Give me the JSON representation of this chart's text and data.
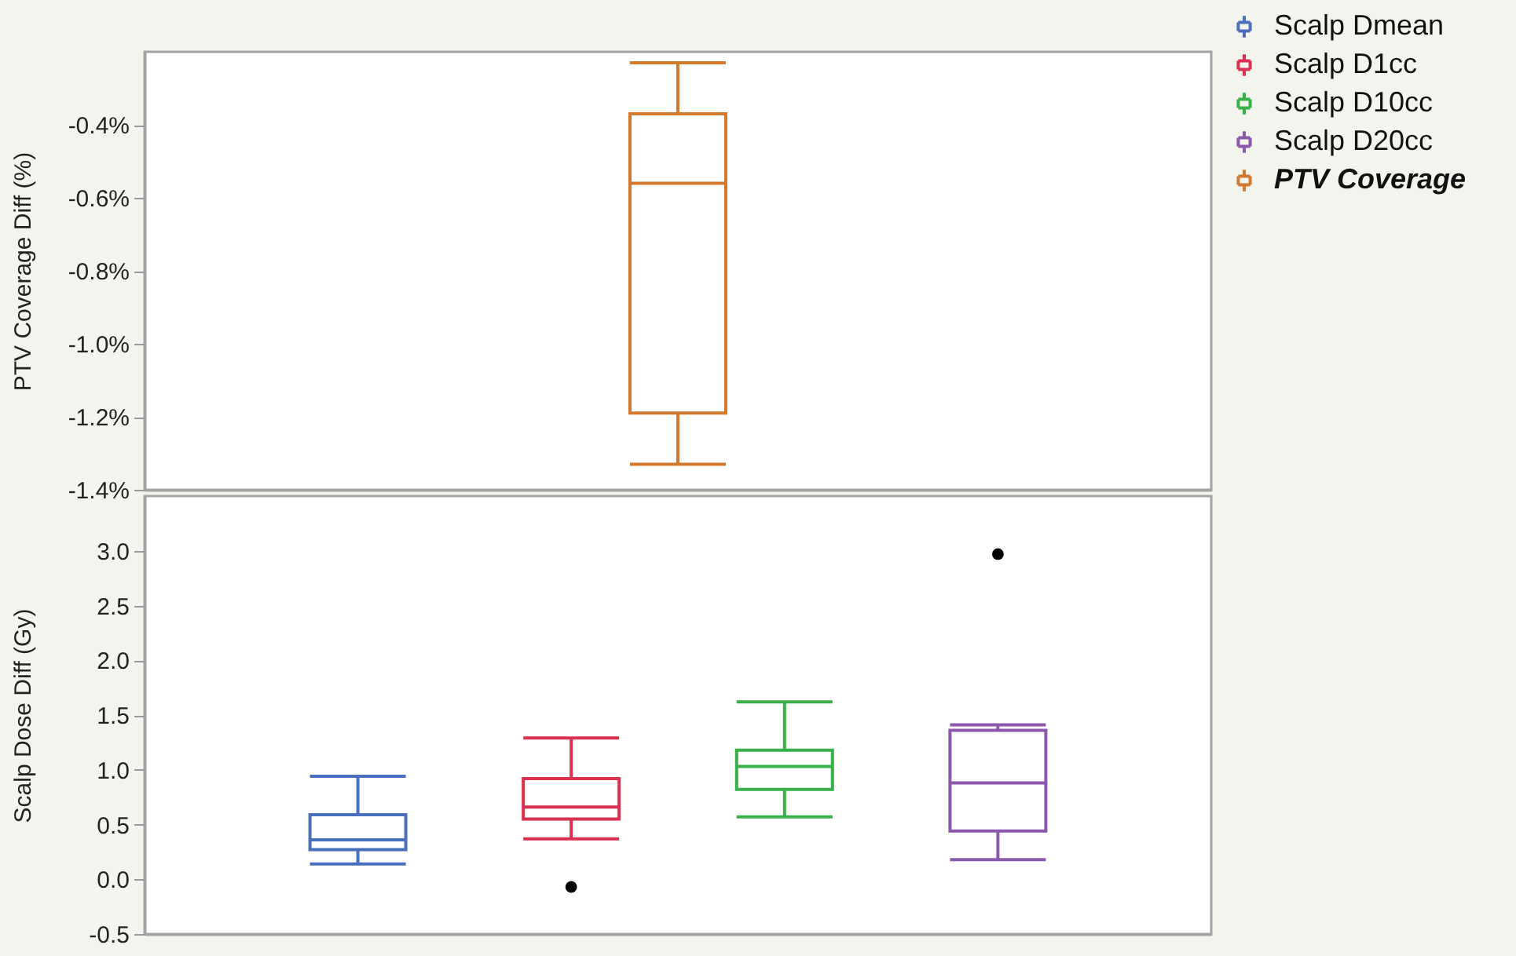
{
  "chart_data": [
    {
      "type": "box",
      "ylabel": "PTV Coverage Diff (%)",
      "categories": [
        null
      ],
      "series": [
        {
          "name": "PTV Coverage",
          "color": "#d4782e",
          "boxes": [
            {
              "low": -1.33,
              "q1": -1.19,
              "median": -0.56,
              "q3": -0.37,
              "high": -0.23
            }
          ]
        }
      ],
      "ylim": [
        -1.4,
        -0.2
      ],
      "yticks": [
        {
          "value": -1.4,
          "label": "-1.4%"
        },
        {
          "value": -1.2,
          "label": "-1.2%"
        },
        {
          "value": -1.0,
          "label": "-1.0%"
        },
        {
          "value": -0.8,
          "label": "-0.8%"
        },
        {
          "value": -0.6,
          "label": "-0.6%"
        },
        {
          "value": -0.4,
          "label": "-0.4%"
        }
      ],
      "tick_labels": "y",
      "legend": "top right"
    },
    {
      "type": "box",
      "ylabel": "Scalp Dose Diff (Gy)",
      "categories": [
        null,
        null,
        null,
        null
      ],
      "series": [
        {
          "name": "Scalp Dmean",
          "color": "#4a6fbe",
          "boxes": [
            {
              "low": 0.14,
              "q1": 0.27,
              "median": 0.36,
              "q3": 0.59,
              "high": 0.94
            },
            null,
            null,
            null
          ]
        },
        {
          "name": "Scalp D1cc",
          "color": "#d9314f",
          "boxes": [
            null,
            {
              "low": 0.37,
              "q1": 0.55,
              "median": 0.66,
              "q3": 0.92,
              "high": 1.29,
              "outliers": [
                -0.07
              ]
            },
            null,
            null
          ]
        },
        {
          "name": "Scalp D10cc",
          "color": "#38b04a",
          "boxes": [
            null,
            null,
            {
              "low": 0.57,
              "q1": 0.82,
              "median": 1.03,
              "q3": 1.18,
              "high": 1.62
            },
            null
          ]
        },
        {
          "name": "Scalp D20cc",
          "color": "#8c58ad",
          "boxes": [
            null,
            null,
            null,
            {
              "low": 0.18,
              "q1": 0.44,
              "median": 0.88,
              "q3": 1.36,
              "high": 1.41,
              "outliers": [
                2.97
              ]
            }
          ]
        }
      ],
      "ylim": [
        -0.5,
        3.5
      ],
      "yticks": [
        -0.5,
        {
          "value": 0,
          "label": "0.0"
        },
        0.5,
        {
          "value": 1,
          "label": "1.0"
        },
        1.5,
        {
          "value": 2,
          "label": "2.0"
        },
        2.5,
        {
          "value": 3,
          "label": "3.0"
        }
      ],
      "tick_labels": "y",
      "legend": "top right"
    }
  ]
}
